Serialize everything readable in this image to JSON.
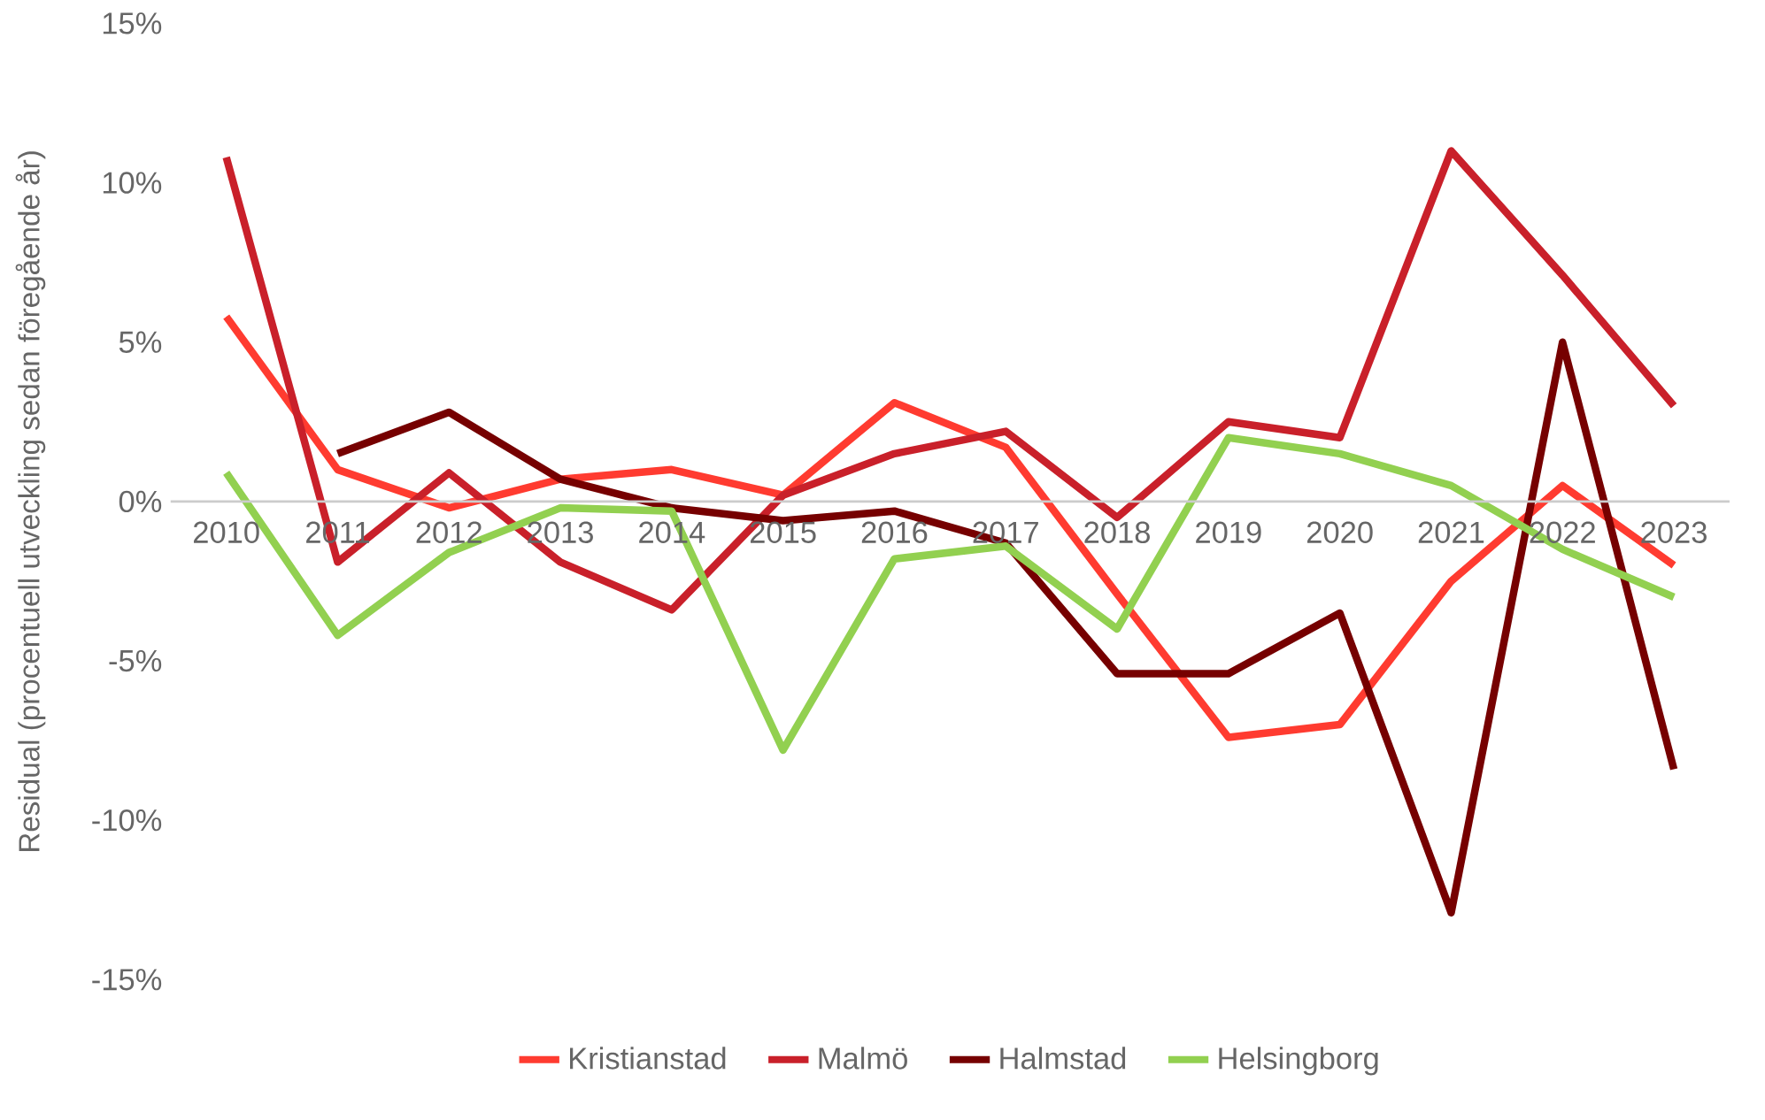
{
  "chart_data": {
    "type": "line",
    "ylabel": "Residual (procentuell utveckling sedan föregående år)",
    "categories": [
      "2010",
      "2011",
      "2012",
      "2013",
      "2014",
      "2015",
      "2016",
      "2017",
      "2018",
      "2019",
      "2020",
      "2021",
      "2022",
      "2023"
    ],
    "ylim": [
      -15,
      15
    ],
    "yticks": [
      {
        "value": -15,
        "label": "-15%"
      },
      {
        "value": -10,
        "label": "-10%"
      },
      {
        "value": -5,
        "label": "-5%"
      },
      {
        "value": 0,
        "label": "0%"
      },
      {
        "value": 5,
        "label": "5%"
      },
      {
        "value": 10,
        "label": "10%"
      },
      {
        "value": 15,
        "label": "15%"
      }
    ],
    "legend": "bottom",
    "grid": false,
    "marker": "none",
    "line_style": "solid",
    "series": [
      {
        "name": "Kristianstad",
        "color": "#ff3b30",
        "values": [
          5.8,
          1.0,
          -0.2,
          0.7,
          1.0,
          0.2,
          3.1,
          1.7,
          -2.9,
          -7.4,
          -7.0,
          -2.5,
          0.5,
          -2.0
        ]
      },
      {
        "name": "Malmö",
        "color": "#c9202a",
        "values": [
          10.8,
          -1.9,
          0.9,
          -1.9,
          -3.4,
          0.2,
          1.5,
          2.2,
          -0.5,
          2.5,
          2.0,
          11.0,
          7.1,
          3.0
        ]
      },
      {
        "name": "Halmstad",
        "color": "#760000",
        "values": [
          null,
          1.5,
          2.8,
          0.7,
          -0.2,
          -0.6,
          -0.3,
          -1.3,
          -5.4,
          -5.4,
          -3.5,
          -12.9,
          5.0,
          -8.4
        ]
      },
      {
        "name": "Helsingborg",
        "color": "#92d050",
        "values": [
          0.9,
          -4.2,
          -1.6,
          -0.2,
          -0.3,
          -7.8,
          -1.8,
          -1.4,
          -4.0,
          2.0,
          1.5,
          0.5,
          -1.5,
          -3.0
        ]
      }
    ]
  }
}
